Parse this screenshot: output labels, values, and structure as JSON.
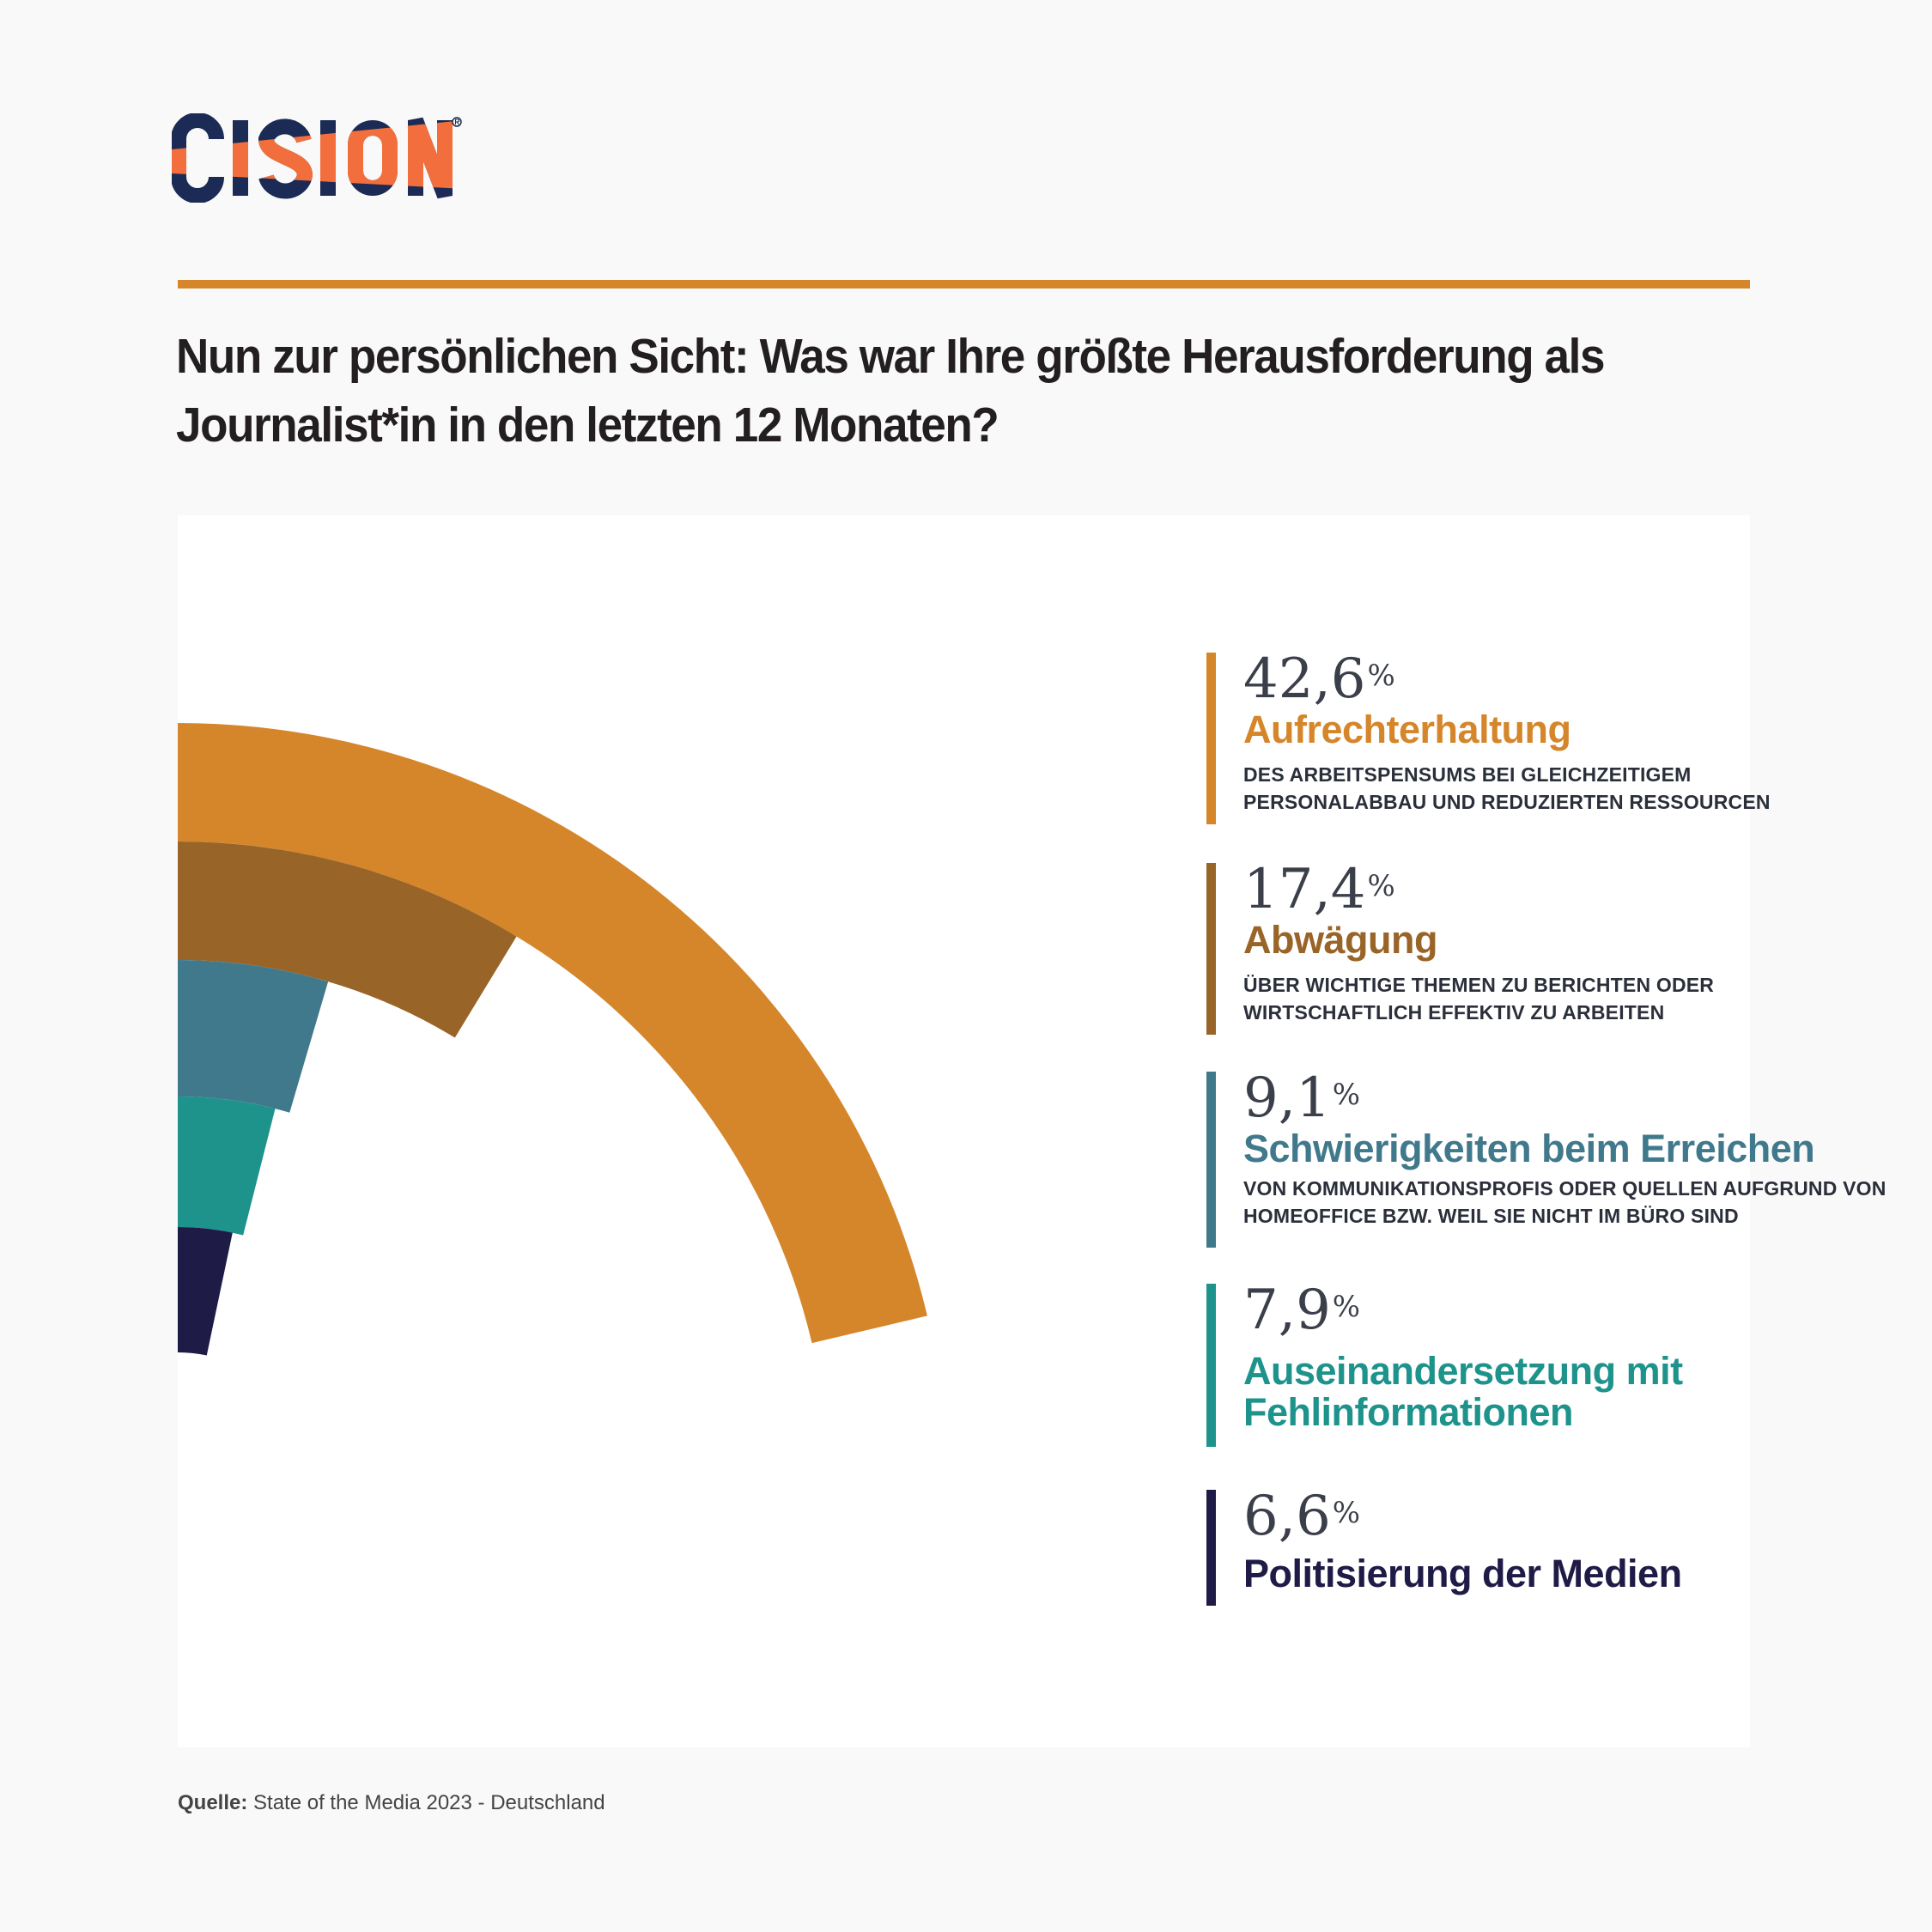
{
  "logo": {
    "text": "CISION",
    "navy": "#1c2b55",
    "orange": "#f26f3d"
  },
  "title": "Nun zur persönlichen Sicht: Was war Ihre größte Herausforderung als Journalist*in in den letzten 12 Monaten?",
  "source": {
    "label": "Quelle:",
    "text": " State of the Media 2023 - Deutschland"
  },
  "chart_data": {
    "type": "radial-bar",
    "unit": "%",
    "full_scale": 100,
    "sweep": "half-circle",
    "items": [
      {
        "value": 42.6,
        "value_label": "42,6",
        "label": "Aufrechterhaltung",
        "description": "DES ARBEITSPENSUMS BEI GLEICHZEITIGEM PERSONALABBAU UND REDUZIERTEN RESSOURCEN",
        "color": "#d5862a"
      },
      {
        "value": 17.4,
        "value_label": "17,4",
        "label": "Abwägung",
        "description": "ÜBER WICHTIGE THEMEN ZU BERICHTEN ODER WIRTSCHAFTLICH EFFEKTIV ZU ARBEITEN",
        "color": "#996428"
      },
      {
        "value": 9.1,
        "value_label": "9,1",
        "label": "Schwierigkeiten beim Erreichen",
        "description": "VON KOMMUNIKATIONSPROFIS ODER QUELLEN AUFGRUND VON HOMEOFFICE BZW. WEIL SIE NICHT IM BÜRO SIND",
        "color": "#41798c"
      },
      {
        "value": 7.9,
        "value_label": "7,9",
        "label": "Auseinandersetzung mit Fehlinformationen",
        "description": "",
        "color": "#1d938c"
      },
      {
        "value": 6.6,
        "value_label": "6,6",
        "label": "Politisierung der Medien",
        "description": "",
        "color": "#1f1b47"
      }
    ]
  }
}
